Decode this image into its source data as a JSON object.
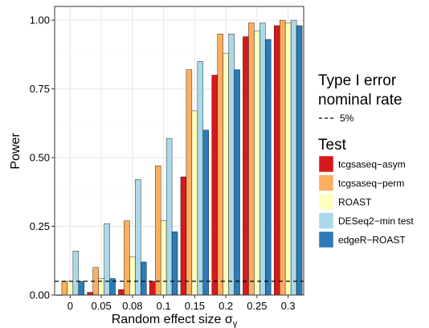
{
  "chart_data": {
    "type": "bar",
    "title": "",
    "xlabel": "Random effect size σ",
    "xlabel_subscript": "γ",
    "ylabel": "Power",
    "categories": [
      "0",
      "0.05",
      "0.08",
      "0.1",
      "0.15",
      "0.2",
      "0.25",
      "0.3"
    ],
    "ylim": [
      0,
      1.05
    ],
    "yticks": [
      0.0,
      0.25,
      0.5,
      0.75,
      1.0
    ],
    "ytick_labels": [
      "0.00",
      "0.25",
      "0.50",
      "0.75",
      "1.00"
    ],
    "grid": true,
    "legend_position": "right",
    "reference_line": {
      "value": 0.05,
      "style": "dashed",
      "legend_title_line1": "Type I error",
      "legend_title_line2": "nominal rate",
      "legend_label": "5%"
    },
    "legend_title": "Test",
    "series": [
      {
        "name": "tcgsaseq−asym",
        "color": "#D7191C",
        "values": [
          0.0,
          0.01,
          0.02,
          0.05,
          0.43,
          0.8,
          0.94,
          0.98
        ]
      },
      {
        "name": "tcgsaseq−perm",
        "color": "#FDAE61",
        "values": [
          0.05,
          0.1,
          0.27,
          0.47,
          0.82,
          0.95,
          0.99,
          1.0
        ]
      },
      {
        "name": "ROAST",
        "color": "#FFFFBF",
        "values": [
          0.05,
          0.06,
          0.14,
          0.27,
          0.67,
          0.88,
          0.96,
          0.99
        ]
      },
      {
        "name": "DESeq2−min test",
        "color": "#ABD9E9",
        "values": [
          0.16,
          0.26,
          0.42,
          0.57,
          0.85,
          0.95,
          0.99,
          1.0
        ]
      },
      {
        "name": "edgeR−ROAST",
        "color": "#2C7BB6",
        "values": [
          0.05,
          0.06,
          0.12,
          0.23,
          0.6,
          0.82,
          0.93,
          0.98
        ]
      }
    ]
  }
}
